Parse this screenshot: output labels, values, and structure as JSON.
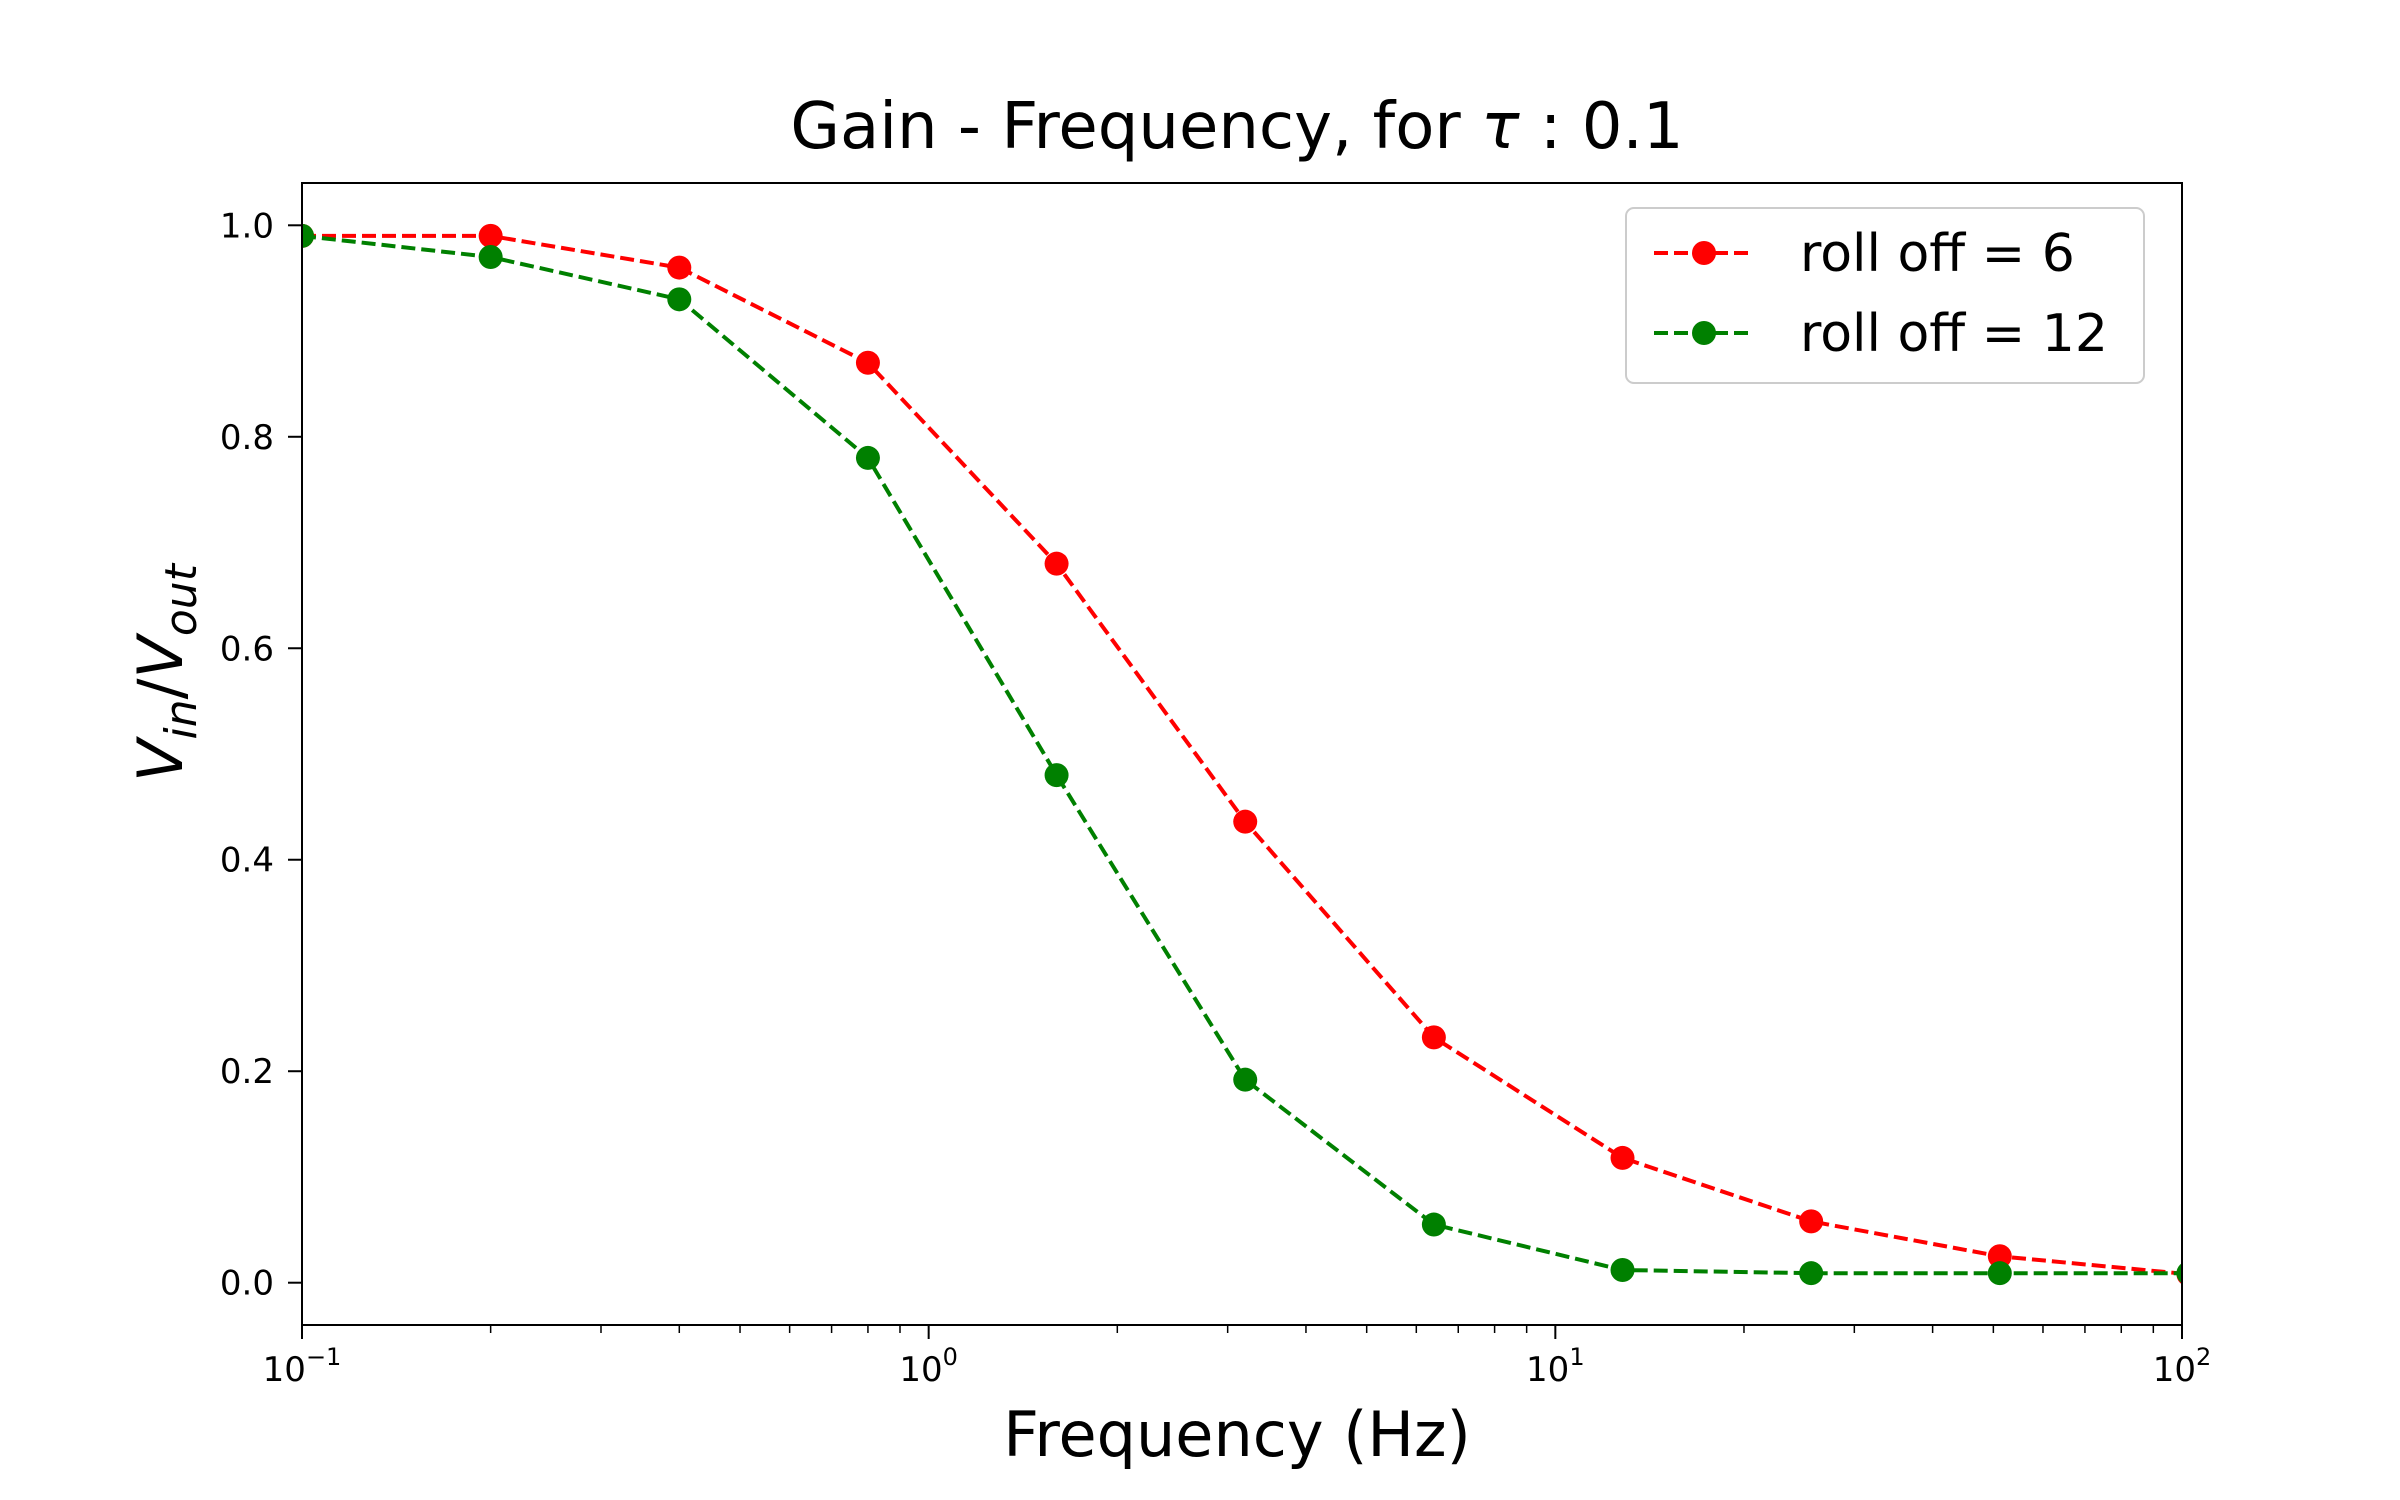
{
  "chart_data": {
    "type": "line",
    "title": {
      "prefix": "Gain - Frequency, for ",
      "symbol": "τ",
      "suffix": " : 0.1"
    },
    "xlabel": "Frequency (Hz)",
    "ylabel": {
      "v1": "V",
      "sub1": "in",
      "slash": "/",
      "v2": "V",
      "sub2": "out"
    },
    "x_scale": "log",
    "xlim": [
      0.1,
      100
    ],
    "ylim": [
      -0.04,
      1.04
    ],
    "x_ticks": [
      {
        "value": 0.1,
        "base": "10",
        "exp": "−1"
      },
      {
        "value": 1,
        "base": "10",
        "exp": "0"
      },
      {
        "value": 10,
        "base": "10",
        "exp": "1"
      },
      {
        "value": 100,
        "base": "10",
        "exp": "2"
      }
    ],
    "y_ticks": [
      {
        "value": 0.0,
        "label": "0.0"
      },
      {
        "value": 0.2,
        "label": "0.2"
      },
      {
        "value": 0.4,
        "label": "0.4"
      },
      {
        "value": 0.6,
        "label": "0.6"
      },
      {
        "value": 0.8,
        "label": "0.8"
      },
      {
        "value": 1.0,
        "label": "1.0"
      }
    ],
    "grid": false,
    "legend_position": "top-right",
    "x": [
      0.1,
      0.2,
      0.4,
      0.8,
      1.6,
      3.2,
      6.4,
      12.8,
      25.6,
      51.2,
      102.4
    ],
    "series": [
      {
        "name": "roll off = 6",
        "color": "#ff0000",
        "line_style": "dashed",
        "marker": "circle",
        "values": [
          0.99,
          0.99,
          0.96,
          0.87,
          0.68,
          0.436,
          0.232,
          0.118,
          0.058,
          0.025,
          0.008
        ]
      },
      {
        "name": "roll off = 12",
        "color": "#008000",
        "line_style": "dashed",
        "marker": "circle",
        "values": [
          0.99,
          0.97,
          0.93,
          0.78,
          0.48,
          0.192,
          0.055,
          0.012,
          0.009,
          0.009,
          0.009
        ]
      }
    ]
  }
}
